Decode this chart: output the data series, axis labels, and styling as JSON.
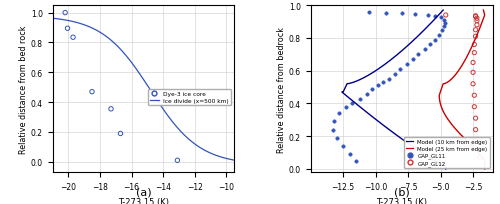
{
  "panel_a": {
    "xlim": [
      -21,
      -9.5
    ],
    "ylim": [
      -0.07,
      1.05
    ],
    "xlabel": "T-273.15 (K)",
    "ylabel": "Relative distance from bed rock",
    "label_a": "(a)",
    "legend": [
      "Dye-3 ice core",
      "Ice divide (x=500 km)"
    ],
    "scatter_color": "#3355bb",
    "line_color": "#3355bb",
    "scatter_x": [
      -20.2,
      -20.05,
      -19.7,
      -18.5,
      -17.3,
      -16.7,
      -13.1
    ],
    "scatter_y": [
      1.0,
      0.895,
      0.835,
      0.47,
      0.355,
      0.19,
      0.01
    ],
    "xticks": [
      -20,
      -18,
      -16,
      -14,
      -12,
      -10
    ],
    "yticks": [
      0.0,
      0.2,
      0.4,
      0.6,
      0.8,
      1.0
    ]
  },
  "panel_b": {
    "xlim": [
      -15,
      -1.0
    ],
    "ylim": [
      -0.02,
      1.0
    ],
    "xlabel": "T-273.15 (K)",
    "ylabel": "Relative distance from bedrock",
    "label_b": "(b)",
    "legend": [
      "Model (10 km from edge)",
      "Model (25 km from edge)",
      "GAP_GL11",
      "GAP_GL12"
    ],
    "blue_line_color": "#000088",
    "red_line_color": "#cc0000",
    "blue_scatter_color": "#3355bb",
    "red_scatter_color": "#cc3333",
    "xticks": [
      -12.5,
      -10,
      -7.5,
      -5,
      -2.5
    ],
    "yticks": [
      0.0,
      0.2,
      0.4,
      0.6,
      0.8,
      1.0
    ],
    "blue_scatter_x": [
      -11.5,
      -12.0,
      -12.5,
      -13.0,
      -13.3,
      -13.2,
      -12.8,
      -12.3,
      -11.8,
      -11.2,
      -10.7,
      -10.3,
      -9.8,
      -9.4,
      -9.0,
      -8.5,
      -8.1,
      -7.6,
      -7.1,
      -6.7,
      -6.2,
      -5.8,
      -5.4,
      -5.1,
      -4.9,
      -4.75,
      -4.65,
      -4.7,
      -5.0,
      -5.4,
      -6.0,
      -7.0,
      -8.0,
      -9.2,
      -10.5
    ],
    "blue_scatter_y": [
      0.05,
      0.09,
      0.14,
      0.19,
      0.24,
      0.29,
      0.34,
      0.38,
      0.4,
      0.43,
      0.46,
      0.49,
      0.51,
      0.53,
      0.55,
      0.58,
      0.61,
      0.64,
      0.67,
      0.7,
      0.73,
      0.76,
      0.79,
      0.82,
      0.85,
      0.87,
      0.89,
      0.91,
      0.925,
      0.935,
      0.94,
      0.945,
      0.95,
      0.955,
      0.96
    ],
    "red_scatter_x": [
      -2.0,
      -2.1,
      -2.2,
      -2.3,
      -2.3,
      -2.4,
      -2.4,
      -2.5,
      -2.5,
      -2.5,
      -2.4,
      -2.4,
      -2.3,
      -2.3,
      -2.2,
      -2.2,
      -2.2,
      -2.3,
      -2.3,
      -4.6
    ],
    "red_scatter_y": [
      0.07,
      0.12,
      0.18,
      0.24,
      0.31,
      0.38,
      0.45,
      0.52,
      0.59,
      0.65,
      0.71,
      0.76,
      0.81,
      0.85,
      0.88,
      0.905,
      0.92,
      0.93,
      0.935,
      0.94
    ]
  }
}
